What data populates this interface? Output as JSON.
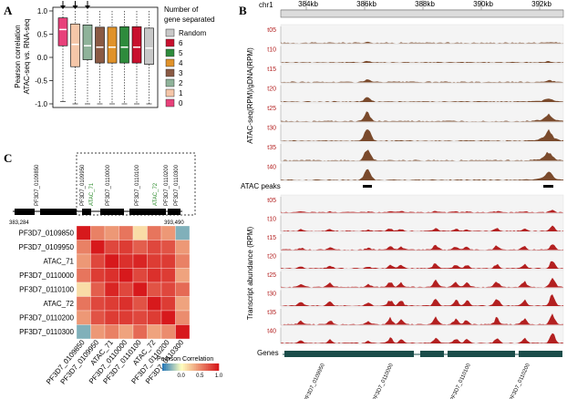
{
  "panelA": {
    "letter": "A",
    "ylabel_line1": "Pearson correlation",
    "ylabel_line2": "ATAC-seq vs. RNA-seq",
    "yticks": [
      "1.0",
      "0.5",
      "0.0",
      "-0.5",
      "-1.0"
    ],
    "legend_title_line1": "Number of",
    "legend_title_line2": "gene separated",
    "legend": [
      {
        "label": "Random",
        "color": "#c8c8c8"
      },
      {
        "label": "6",
        "color": "#c8102e"
      },
      {
        "label": "5",
        "color": "#2e8b3c"
      },
      {
        "label": "4",
        "color": "#e0922a"
      },
      {
        "label": "3",
        "color": "#8a5a44"
      },
      {
        "label": "2",
        "color": "#8fb39a"
      },
      {
        "label": "1",
        "color": "#f5c6a8"
      },
      {
        "label": "0",
        "color": "#e8417a"
      }
    ],
    "boxes": [
      {
        "group": "0",
        "color": "#e8417a",
        "q1": 0.25,
        "median": 0.6,
        "q3": 0.85,
        "wlo": -0.95,
        "whi": 1.0,
        "arrow": true
      },
      {
        "group": "1",
        "color": "#f5c6a8",
        "q1": -0.2,
        "median": 0.28,
        "q3": 0.72,
        "wlo": -1.0,
        "whi": 1.0,
        "arrow": true
      },
      {
        "group": "2",
        "color": "#8fb39a",
        "q1": -0.05,
        "median": 0.25,
        "q3": 0.7,
        "wlo": -1.0,
        "whi": 1.0,
        "arrow": true
      },
      {
        "group": "3",
        "color": "#8a5a44",
        "q1": -0.12,
        "median": 0.22,
        "q3": 0.65,
        "wlo": -1.0,
        "whi": 1.0,
        "arrow": false
      },
      {
        "group": "4",
        "color": "#e0922a",
        "q1": -0.12,
        "median": 0.22,
        "q3": 0.65,
        "wlo": -1.0,
        "whi": 1.0,
        "arrow": false
      },
      {
        "group": "5",
        "color": "#2e8b3c",
        "q1": -0.12,
        "median": 0.22,
        "q3": 0.66,
        "wlo": -1.0,
        "whi": 1.0,
        "arrow": false
      },
      {
        "group": "6",
        "color": "#c8102e",
        "q1": -0.12,
        "median": 0.22,
        "q3": 0.66,
        "wlo": -1.0,
        "whi": 1.0,
        "arrow": false
      },
      {
        "group": "Random",
        "color": "#c8c8c8",
        "q1": -0.15,
        "median": 0.2,
        "q3": 0.63,
        "wlo": -1.0,
        "whi": 1.0,
        "arrow": false
      }
    ]
  },
  "panelB": {
    "letter": "B",
    "chrom": "chr1",
    "coords": [
      "384kb",
      "386kb",
      "388kb",
      "390kb",
      "392kb"
    ],
    "atac_ylabel": "ATAC-seq(RPM)/gDNA(RPM)",
    "rna_ylabel": "Transcript abundance (RPM)",
    "timepoints": [
      "t05",
      "t10",
      "t15",
      "t20",
      "t25",
      "t30",
      "t35",
      "t40"
    ],
    "atac_peak_intensity": [
      0.05,
      0.08,
      0.15,
      0.25,
      0.55,
      0.85,
      0.7,
      0.75
    ],
    "rna_intensity": [
      0.15,
      0.35,
      0.5,
      0.6,
      0.8,
      0.9,
      0.85,
      0.7
    ],
    "atac_peaks_label": "ATAC peaks",
    "genes_label": "Genes",
    "gene_names": [
      "PF3D7_0109950",
      "PF3D7_0110000",
      "PF3D7_0110100",
      "PF3D7_0110200"
    ],
    "atac_color": "#7a4a2c",
    "rna_color": "#b32020",
    "gene_color": "#1b4d4a"
  },
  "panelC": {
    "letter": "C",
    "coord_start": "383,284",
    "coord_end": "393,490",
    "track_labels": [
      {
        "label": "PF3D7_0109850",
        "type": "gene"
      },
      {
        "label": "PF3D7_0109950",
        "type": "gene"
      },
      {
        "label": "ATAC_71",
        "type": "atac"
      },
      {
        "label": "PF3D7_0110000",
        "type": "gene"
      },
      {
        "label": "PF3D7_0110100",
        "type": "gene"
      },
      {
        "label": "ATAC_72",
        "type": "atac"
      },
      {
        "label": "PF3D7_0110200",
        "type": "gene"
      },
      {
        "label": "PF3D7_0110300",
        "type": "gene"
      }
    ],
    "legend_title": "Pearson Correlation",
    "legend_ticks": [
      "0.0",
      "0.5",
      "1.0"
    ],
    "atac_label_color": "#2a8a2a"
  },
  "chart_data": {
    "type": "heatmap",
    "rows": [
      "PF3D7_0109850",
      "PF3D7_0109950",
      "ATAC_71",
      "PF3D7_0110000",
      "PF3D7_0110100",
      "ATAC_72",
      "PF3D7_0110200",
      "PF3D7_0110300"
    ],
    "cols": [
      "PF3D7_0109850",
      "PF3D7_0109950",
      "ATAC_71",
      "PF3D7_0110000",
      "PF3D7_0110100",
      "ATAC_72",
      "PF3D7_0110200",
      "PF3D7_0110300"
    ],
    "values": [
      [
        1.0,
        0.55,
        0.45,
        0.6,
        0.15,
        0.6,
        0.45,
        -0.3
      ],
      [
        0.55,
        1.0,
        0.8,
        0.85,
        0.7,
        0.8,
        0.75,
        0.45
      ],
      [
        0.45,
        0.8,
        1.0,
        0.9,
        0.95,
        0.85,
        0.85,
        0.55
      ],
      [
        0.6,
        0.85,
        0.9,
        1.0,
        0.8,
        0.9,
        0.85,
        0.4
      ],
      [
        0.15,
        0.7,
        0.95,
        0.8,
        1.0,
        0.75,
        0.8,
        0.65
      ],
      [
        0.6,
        0.8,
        0.85,
        0.9,
        0.75,
        1.0,
        0.85,
        0.4
      ],
      [
        0.45,
        0.75,
        0.85,
        0.85,
        0.8,
        0.85,
        1.0,
        0.5
      ],
      [
        -0.3,
        0.45,
        0.55,
        0.4,
        0.65,
        0.4,
        0.5,
        1.0
      ]
    ],
    "colorscale": [
      [
        -0.5,
        "#2c7bb6"
      ],
      [
        0.0,
        "#ffffbf"
      ],
      [
        1.0,
        "#d7191c"
      ]
    ]
  }
}
